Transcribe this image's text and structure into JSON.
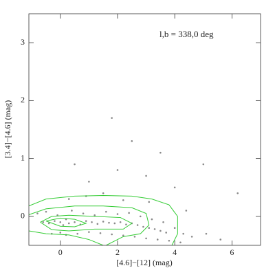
{
  "chart_data": {
    "type": "scatter",
    "annotation": "l,b  =  338,0 deg",
    "xlabel": "[4.6]−[12] (mag)",
    "ylabel": "[3.4]−[4.6] (mag)",
    "xlim": [
      -1.1,
      7
    ],
    "ylim": [
      -0.5,
      3.5
    ],
    "xticks": [
      0,
      2,
      4,
      6
    ],
    "yticks": [
      0,
      1,
      2,
      3
    ],
    "series": [
      {
        "color": "#8a8a8a",
        "x": [
          -0.6,
          -0.4,
          -0.2,
          0,
          0.1,
          0.2,
          0.3,
          0.5,
          0.7,
          0.9,
          1.1,
          1.3,
          1.5,
          1.7,
          1.9,
          2.1,
          2.3,
          2.5,
          2.7,
          2.9,
          3.1,
          3.3,
          3.5,
          3.7,
          -0.8,
          -0.5,
          -0.1,
          0.4,
          0.8,
          1.2,
          1.6,
          2.0,
          2.4,
          2.8,
          3.2,
          3.6,
          4.0,
          4.3,
          -0.3,
          0.0,
          0.2,
          0.6,
          1.0,
          1.4,
          1.8,
          2.2,
          2.6,
          3.0,
          3.4,
          3.8,
          4.2,
          4.6,
          5.1,
          5.6,
          0.3,
          0.9,
          1.5,
          2.2,
          3.1,
          4.4,
          1.0,
          2.0,
          3.0,
          4.0,
          5.0,
          2.5,
          3.5,
          1.8,
          0.5,
          6.2
        ],
        "y": [
          -0.1,
          -0.12,
          -0.08,
          -0.1,
          -0.15,
          -0.05,
          -0.12,
          -0.1,
          -0.14,
          -0.08,
          -0.1,
          -0.13,
          -0.09,
          -0.11,
          -0.12,
          -0.1,
          -0.14,
          -0.12,
          -0.15,
          -0.18,
          -0.2,
          -0.22,
          -0.25,
          -0.28,
          0.05,
          0.08,
          0.02,
          0.1,
          0.05,
          0.02,
          0.08,
          0.04,
          0.06,
          0.0,
          -0.05,
          -0.1,
          -0.2,
          -0.3,
          -0.3,
          -0.28,
          -0.32,
          -0.3,
          -0.27,
          -0.29,
          -0.31,
          -0.33,
          -0.35,
          -0.38,
          -0.4,
          -0.42,
          -0.45,
          -0.35,
          -0.3,
          -0.4,
          0.3,
          0.35,
          0.4,
          0.28,
          0.25,
          0.1,
          0.6,
          0.8,
          0.7,
          0.5,
          0.9,
          1.3,
          1.1,
          1.7,
          0.9,
          0.4
        ]
      }
    ],
    "contours": [
      {
        "color": "#33cc33",
        "x": [
          -1.1,
          -0.5,
          0.5,
          1.5,
          2.5,
          3.2,
          3.8,
          4.1,
          4.1,
          3.9
        ],
        "y": [
          0.18,
          0.3,
          0.35,
          0.36,
          0.35,
          0.3,
          0.2,
          0,
          -0.3,
          -0.5
        ]
      },
      {
        "color": "#33cc33",
        "x": [
          -1.1,
          -0.5,
          0.5,
          1.5,
          2.5,
          3.0,
          3.1,
          2.8,
          2.2,
          1.6
        ],
        "y": [
          0.03,
          0.13,
          0.18,
          0.18,
          0.15,
          0.05,
          -0.15,
          -0.3,
          -0.35,
          -0.5
        ]
      },
      {
        "color": "#33cc33",
        "x": [
          -0.7,
          -0.3,
          0.3,
          1.2,
          2.1,
          2.5,
          2.2,
          1.2,
          0.3,
          -0.3,
          -0.7
        ],
        "y": [
          -0.1,
          0.0,
          0.02,
          0.0,
          -0.02,
          -0.12,
          -0.22,
          -0.22,
          -0.25,
          -0.23,
          -0.1
        ]
      },
      {
        "color": "#33cc33",
        "x": [
          -1.1,
          -0.5,
          0.3,
          1.0,
          1.5
        ],
        "y": [
          -0.25,
          -0.3,
          -0.32,
          -0.4,
          -0.5
        ]
      },
      {
        "color": "#33cc33",
        "x": [
          -0.5,
          0,
          0.5,
          0.9,
          0.5,
          0,
          -0.5
        ],
        "y": [
          -0.08,
          -0.03,
          -0.05,
          -0.12,
          -0.18,
          -0.17,
          -0.08
        ]
      }
    ]
  }
}
